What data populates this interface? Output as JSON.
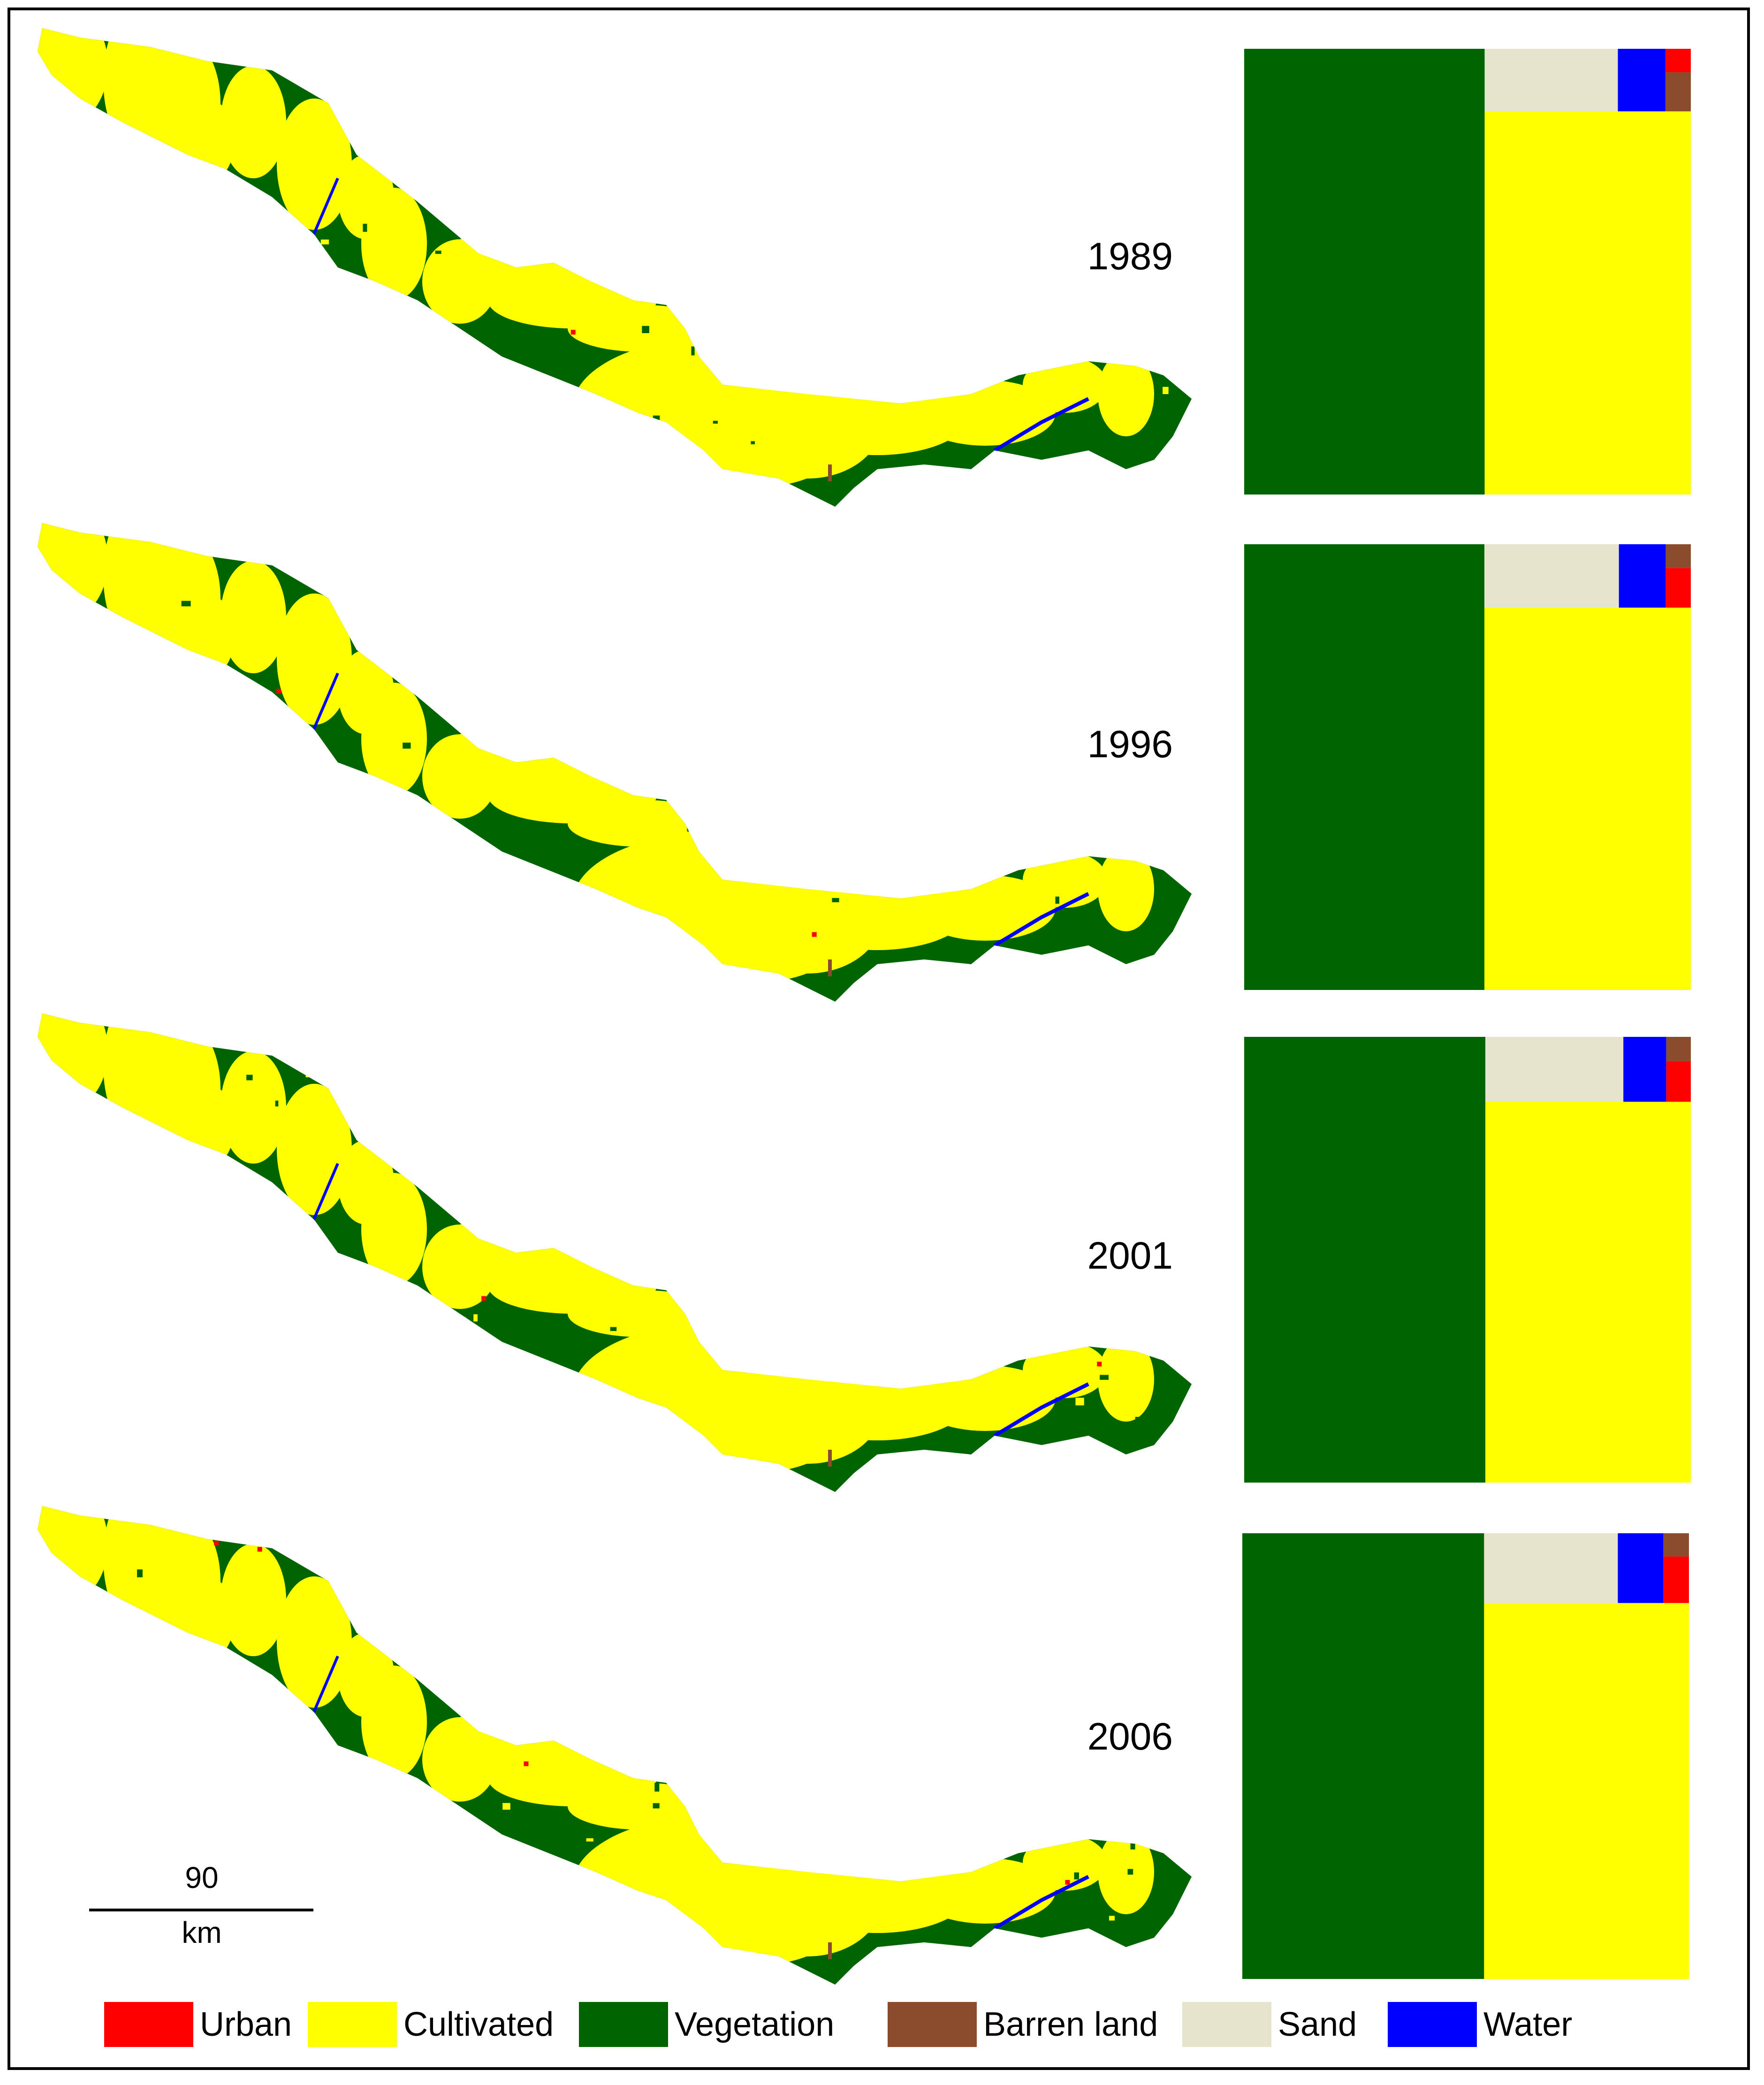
{
  "colors": {
    "urban": "#ff0000",
    "cultivated": "#ffff00",
    "vegetation": "#006400",
    "barren": "#8b4c2e",
    "sand": "#e6e4cc",
    "water": "#0000ff"
  },
  "maps": [
    {
      "year": "1989"
    },
    {
      "year": "1996"
    },
    {
      "year": "2001"
    },
    {
      "year": "2006"
    }
  ],
  "scale_bar": {
    "distance": "90",
    "unit": "km"
  },
  "legend": [
    {
      "key": "urban",
      "label": "Urban"
    },
    {
      "key": "cultivated",
      "label": "Cultivated"
    },
    {
      "key": "vegetation",
      "label": "Vegetation"
    },
    {
      "key": "barren",
      "label": "Barren land"
    },
    {
      "key": "sand",
      "label": "Sand"
    },
    {
      "key": "water",
      "label": "Water"
    }
  ],
  "chart_data": {
    "type": "treemap",
    "unit": "share of area (%)",
    "categories": [
      "Vegetation",
      "Cultivated",
      "Sand",
      "Water",
      "Urban",
      "Barren land"
    ],
    "series": [
      {
        "name": "1989",
        "values": [
          54.0,
          39.8,
          4.2,
          1.5,
          0.3,
          0.5
        ]
      },
      {
        "name": "1996",
        "values": [
          54.0,
          39.8,
          4.3,
          1.5,
          0.5,
          0.3
        ]
      },
      {
        "name": "2001",
        "values": [
          54.0,
          39.3,
          4.5,
          1.4,
          0.5,
          0.3
        ]
      },
      {
        "name": "2006",
        "values": [
          54.3,
          38.8,
          4.7,
          1.6,
          0.6,
          0.3
        ]
      }
    ]
  }
}
